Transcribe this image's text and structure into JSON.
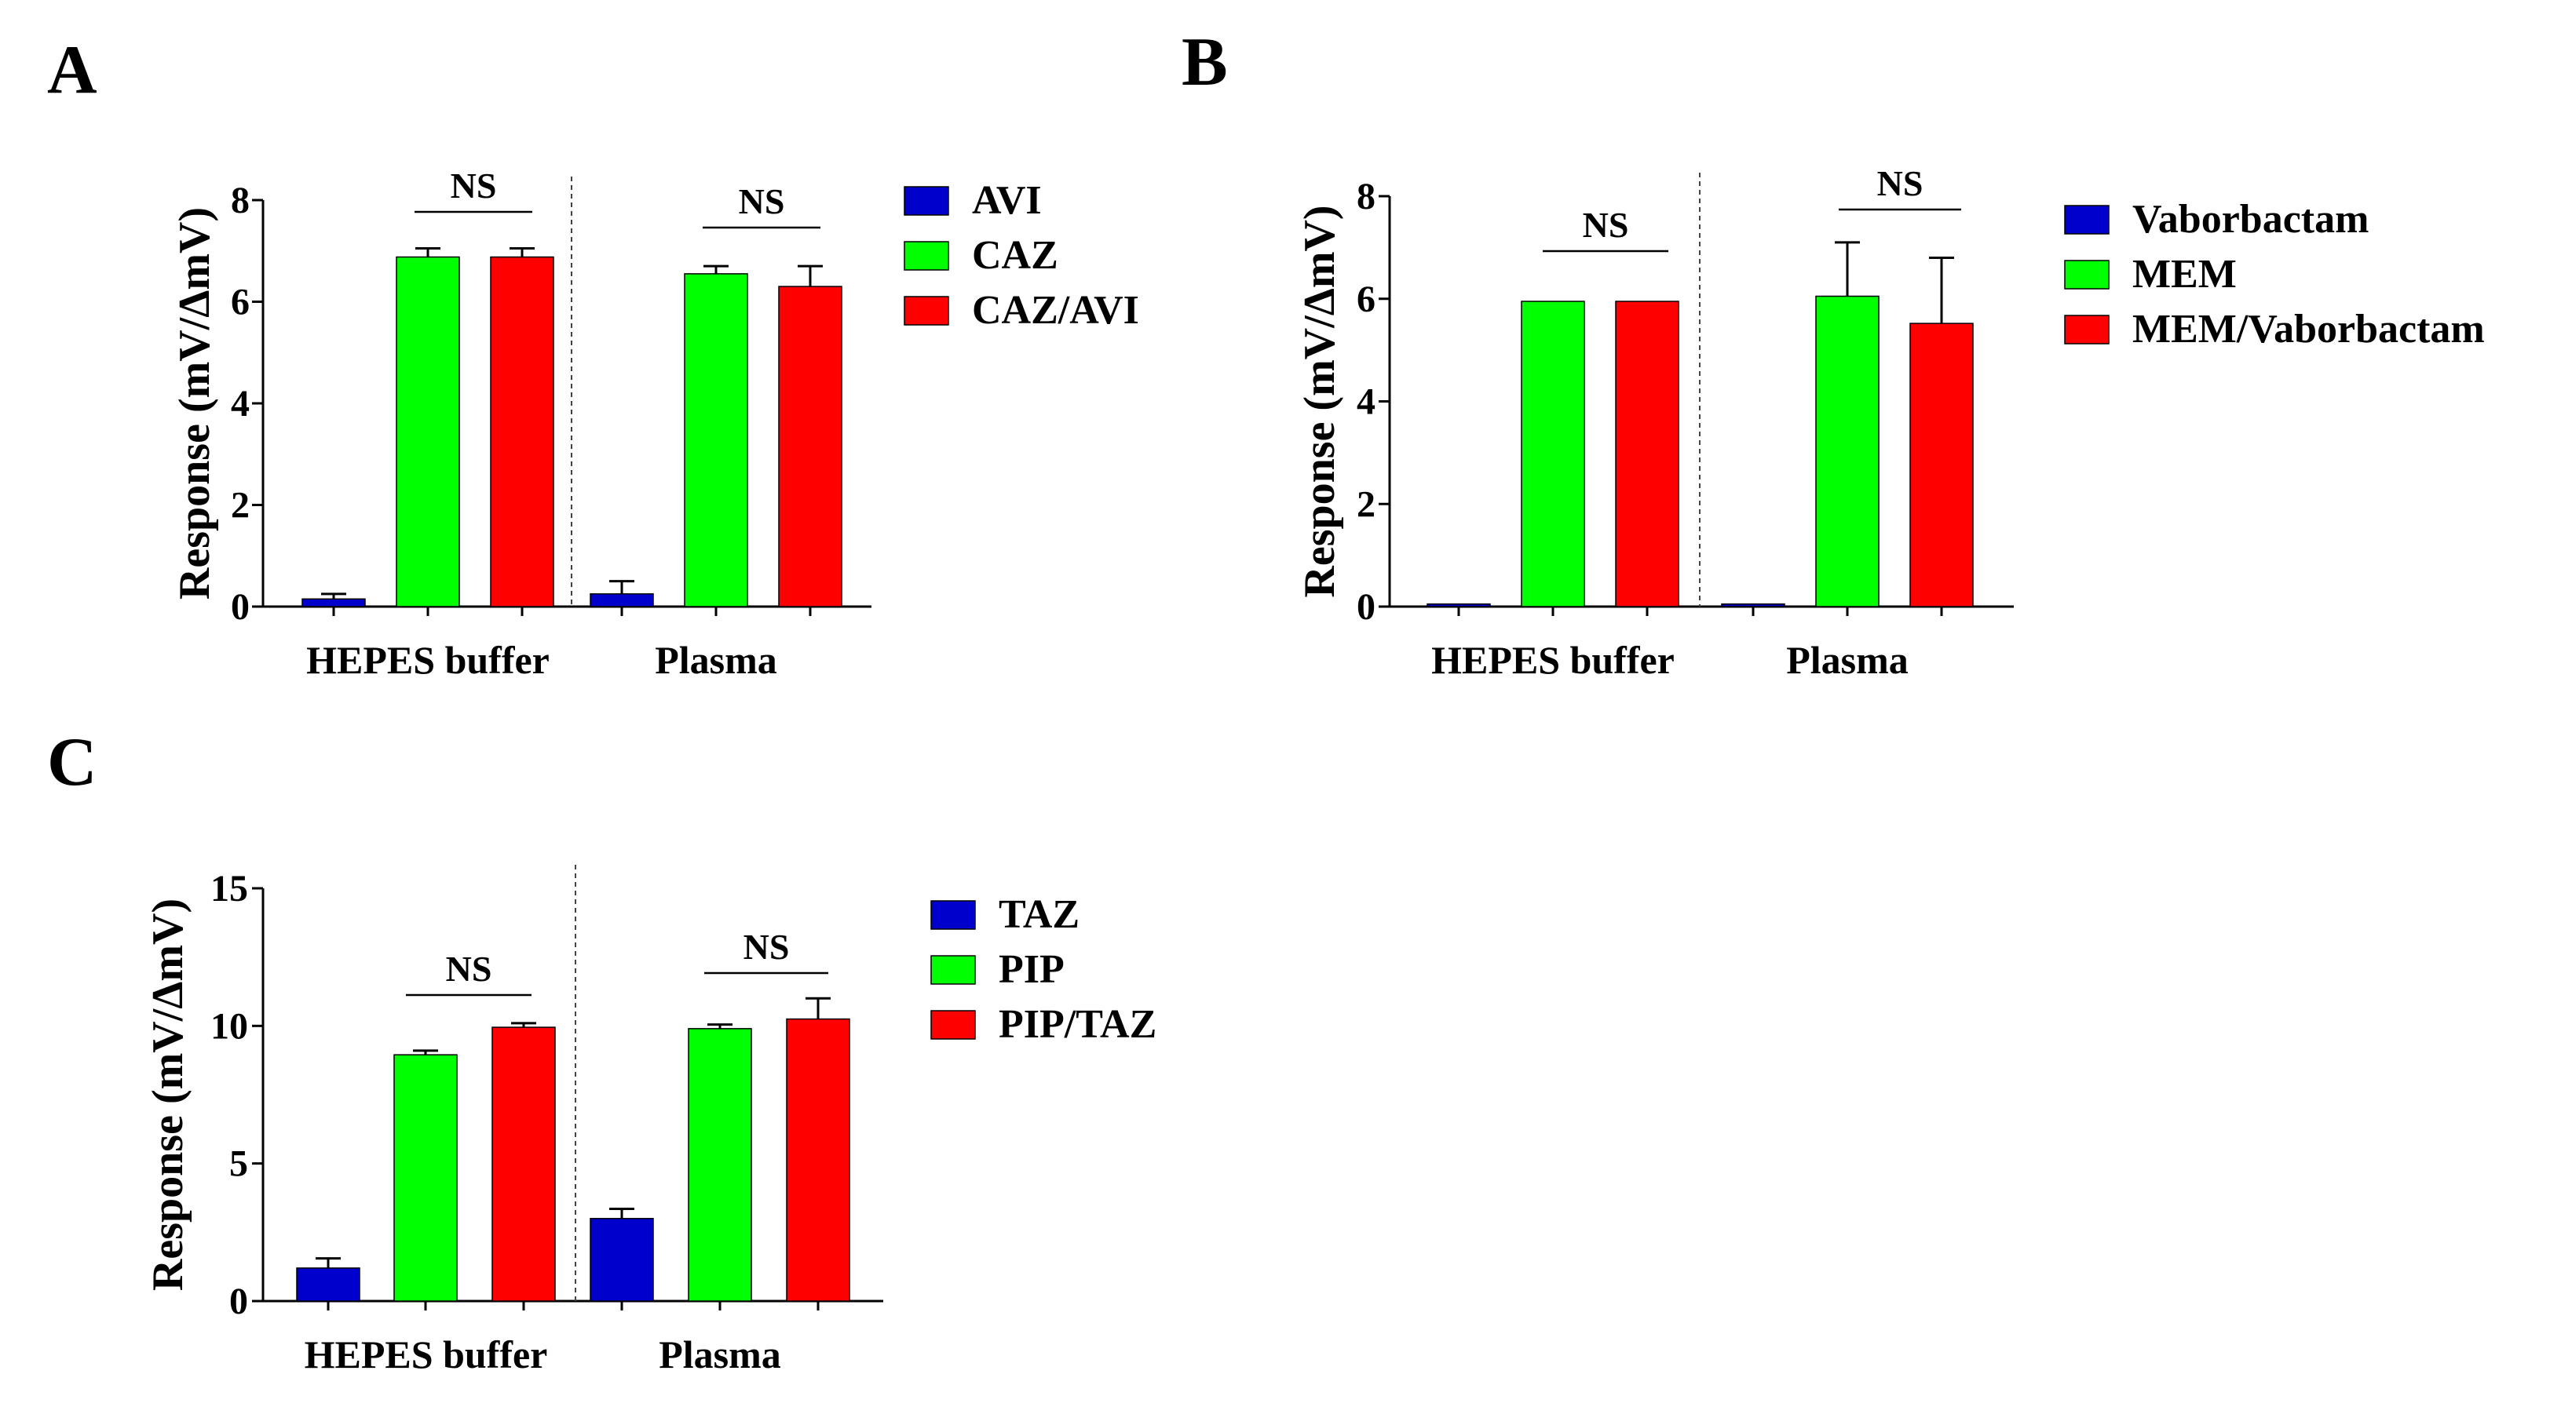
{
  "chart_data": [
    {
      "panel": "A",
      "type": "bar",
      "categories": [
        "HEPES buffer",
        "Plasma"
      ],
      "ylabel": "Response (mV/ΔmV)",
      "ylim": [
        0,
        8
      ],
      "yticks": [
        "0",
        "2",
        "4",
        "6",
        "8"
      ],
      "series": [
        {
          "name": "AVI",
          "color": "#0000cc",
          "values": [
            0.15,
            0.25
          ],
          "errors": [
            0.1,
            0.25
          ]
        },
        {
          "name": "CAZ",
          "color": "#00ff00",
          "values": [
            6.88,
            6.55
          ],
          "errors": [
            0.17,
            0.15
          ]
        },
        {
          "name": "CAZ/AVI",
          "color": "#ff0000",
          "values": [
            6.88,
            6.3
          ],
          "errors": [
            0.17,
            0.4
          ]
        }
      ],
      "annotations": [
        "NS",
        "NS"
      ]
    },
    {
      "panel": "B",
      "type": "bar",
      "categories": [
        "HEPES buffer",
        "Plasma"
      ],
      "ylabel": "Response (mV/ΔmV)",
      "ylim": [
        0,
        8
      ],
      "yticks": [
        "0",
        "2",
        "4",
        "6",
        "8"
      ],
      "series": [
        {
          "name": "Vaborbactam",
          "color": "#0000cc",
          "values": [
            0.05,
            0.05
          ],
          "errors": [
            0,
            0
          ]
        },
        {
          "name": "MEM",
          "color": "#00ff00",
          "values": [
            5.95,
            6.05
          ],
          "errors": [
            0,
            1.05
          ]
        },
        {
          "name": "MEM/Vaborbactam",
          "color": "#ff0000",
          "values": [
            5.95,
            5.52
          ],
          "errors": [
            0,
            1.28
          ]
        }
      ],
      "annotations": [
        "NS",
        "NS"
      ]
    },
    {
      "panel": "C",
      "type": "bar",
      "categories": [
        "HEPES buffer",
        "Plasma"
      ],
      "ylabel": "Response (mV/ΔmV)",
      "ylim": [
        0,
        15
      ],
      "yticks": [
        "0",
        "5",
        "10",
        "15"
      ],
      "series": [
        {
          "name": "TAZ",
          "color": "#0000cc",
          "values": [
            1.2,
            3.0
          ],
          "errors": [
            0.35,
            0.35
          ]
        },
        {
          "name": "PIP",
          "color": "#00ff00",
          "values": [
            8.95,
            9.9
          ],
          "errors": [
            0.15,
            0.15
          ]
        },
        {
          "name": "PIP/TAZ",
          "color": "#ff0000",
          "values": [
            9.95,
            10.25
          ],
          "errors": [
            0.15,
            0.75
          ]
        }
      ],
      "annotations": [
        "NS",
        "NS"
      ]
    }
  ]
}
